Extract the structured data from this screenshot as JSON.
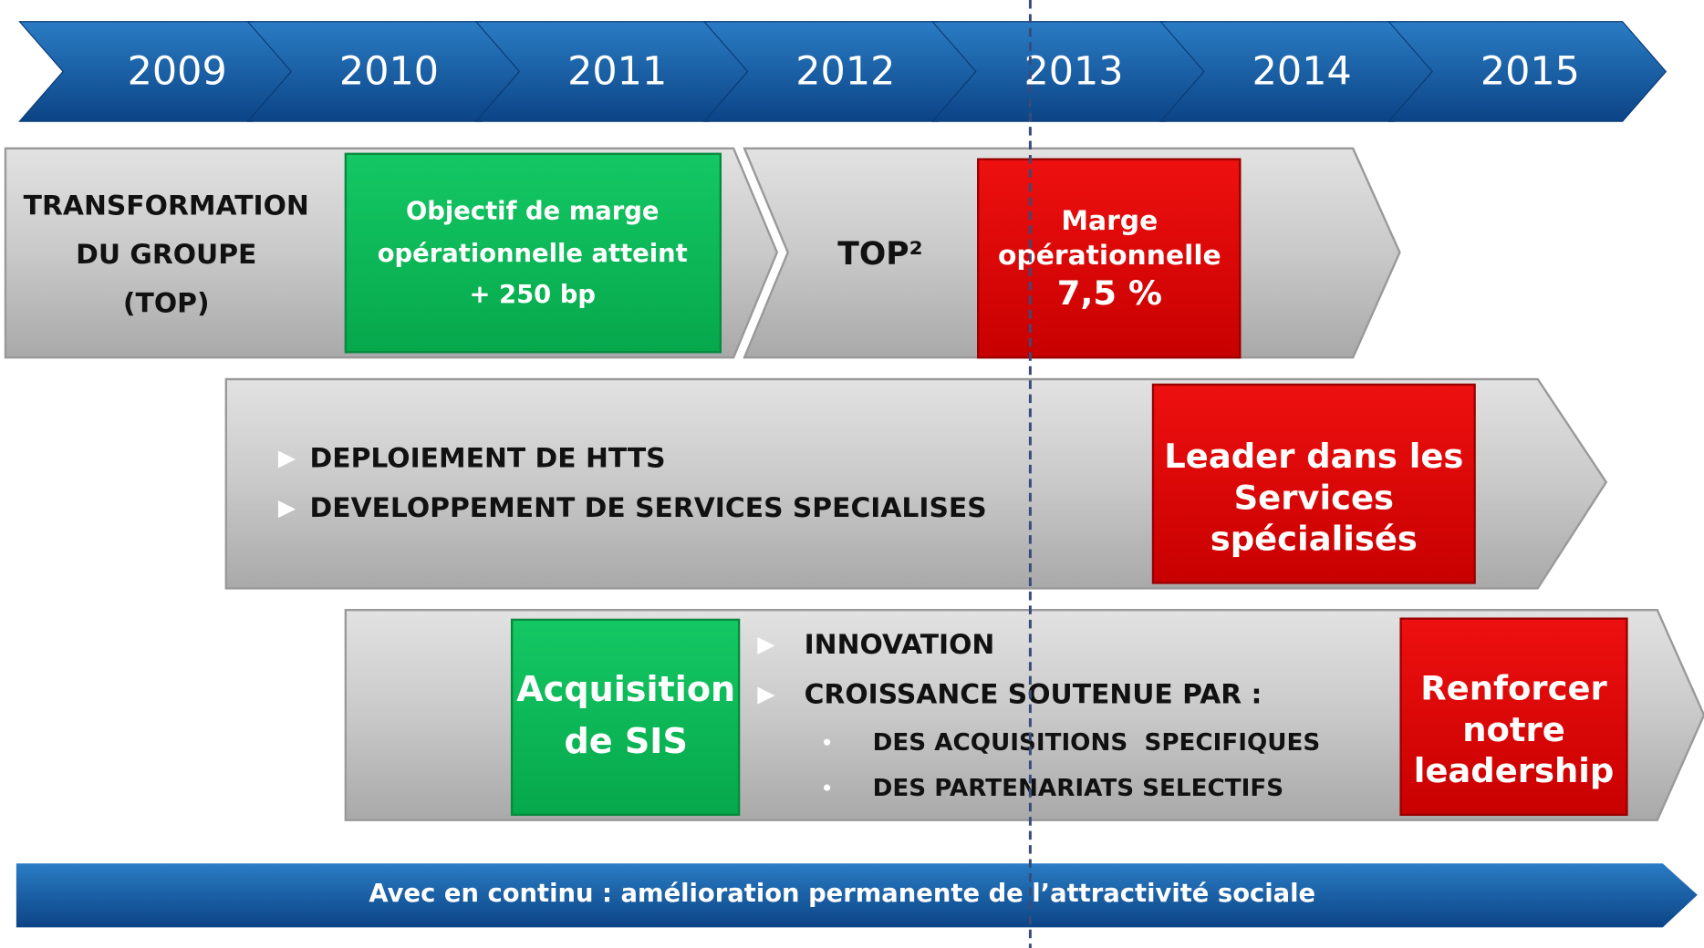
{
  "timeline": {
    "years": [
      "2009",
      "2010",
      "2011",
      "2012",
      "2013",
      "2014",
      "2015"
    ]
  },
  "row1": {
    "label": [
      "TRANSFORMATION",
      "DU GROUPE",
      "(TOP)"
    ],
    "milestone": [
      "Objectif de marge",
      "opérationnelle atteint",
      "+ 250 bp"
    ],
    "phase2": "TOP²",
    "target": [
      "Marge",
      "opérationnelle",
      "7,5 %"
    ]
  },
  "row2": {
    "bullets": [
      "DEPLOIEMENT DE HTTS",
      "DEVELOPPEMENT DE SERVICES SPECIALISES"
    ],
    "target": [
      "Leader dans les",
      "Services",
      "spécialisés"
    ]
  },
  "row3": {
    "milestone": [
      "Acquisition",
      "de SIS"
    ],
    "bullets": [
      "INNOVATION",
      "CROISSANCE SOUTENUE PAR :"
    ],
    "sub_bullets": [
      "DES ACQUISITIONS  SPECIFIQUES",
      "DES PARTENARIATS SELECTIFS"
    ],
    "target": [
      "Renforcer",
      "notre",
      "leadership"
    ]
  },
  "footer": "Avec en continu : amélioration permanente de l’attractivité sociale"
}
